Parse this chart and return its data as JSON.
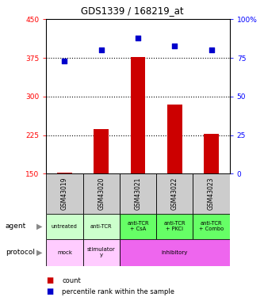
{
  "title": "GDS1339 / 168219_at",
  "samples": [
    "GSM43019",
    "GSM43020",
    "GSM43021",
    "GSM43022",
    "GSM43023"
  ],
  "count_values": [
    152,
    237,
    376,
    284,
    228
  ],
  "percentile_values": [
    73,
    80,
    88,
    83,
    80
  ],
  "count_ylim": [
    150,
    450
  ],
  "percentile_ylim": [
    0,
    100
  ],
  "count_yticks": [
    150,
    225,
    300,
    375,
    450
  ],
  "percentile_yticks": [
    0,
    25,
    50,
    75,
    100
  ],
  "percentile_yticklabels": [
    "0",
    "25",
    "50",
    "75",
    "100%"
  ],
  "bar_color": "#cc0000",
  "dot_color": "#0000cc",
  "agent_labels": [
    "untreated",
    "anti-TCR",
    "anti-TCR\n+ CsA",
    "anti-TCR\n+ PKCi",
    "anti-TCR\n+ Combo"
  ],
  "agent_bg_light": "#ccffcc",
  "agent_bg_dark": "#66ff66",
  "protocol_bg_magenta": "#ee66ee",
  "protocol_bg_light": "#ffccff",
  "sample_bg": "#cccccc",
  "dotted_lw": 0.8
}
